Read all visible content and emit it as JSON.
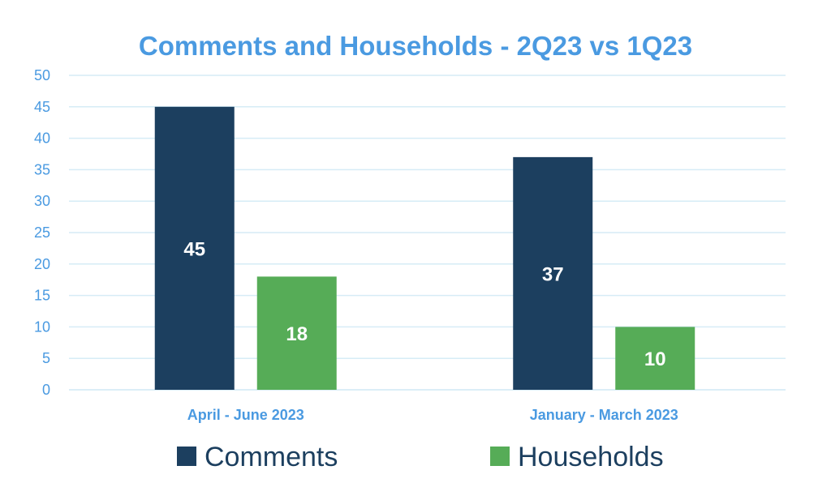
{
  "chart_data": {
    "type": "bar",
    "title": "Comments and Households - 2Q23 vs 1Q23",
    "categories": [
      "April - June 2023",
      "January - March 2023"
    ],
    "series": [
      {
        "name": "Comments",
        "values": [
          45,
          37
        ],
        "color": "#1c3f5f"
      },
      {
        "name": "Households",
        "values": [
          18,
          10
        ],
        "color": "#56ac57"
      }
    ],
    "ylim": [
      0,
      50
    ],
    "yticks": [
      0,
      5,
      10,
      15,
      20,
      25,
      30,
      35,
      40,
      45,
      50
    ],
    "grid": true,
    "legend_position": "bottom",
    "data_labels": true
  },
  "colors": {
    "title": "#4a9ae1",
    "axis_text": "#4a9ae1",
    "gridline": "#d6ecf6",
    "legend_text": "#1c3f5f"
  }
}
